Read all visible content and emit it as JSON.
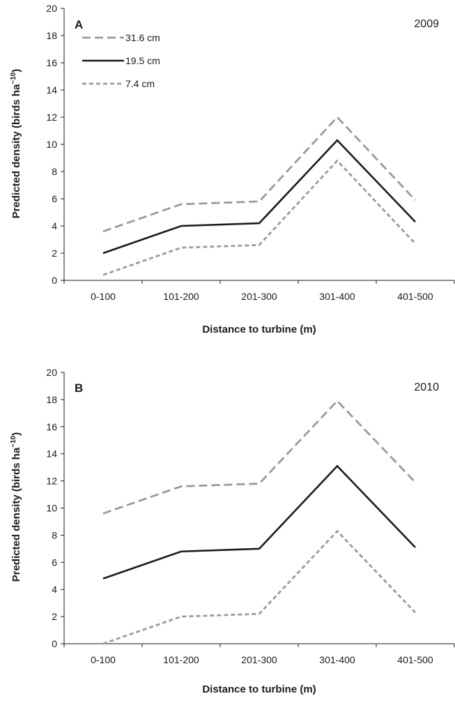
{
  "chart_data": [
    {
      "type": "line",
      "panel_label": "A",
      "year_label": "2009",
      "categories": [
        "0-100",
        "101-200",
        "201-300",
        "301-400",
        "401-500"
      ],
      "series": [
        {
          "name": "31.6 cm",
          "values": [
            3.6,
            5.6,
            5.8,
            12.0,
            5.9
          ],
          "color": "#9a9a9a",
          "dash": "long"
        },
        {
          "name": "19.5 cm",
          "values": [
            2.0,
            4.0,
            4.2,
            10.3,
            4.3
          ],
          "color": "#1a1a1a",
          "dash": "solid"
        },
        {
          "name": "7.4 cm",
          "values": [
            0.4,
            2.4,
            2.6,
            8.8,
            2.7
          ],
          "color": "#9a9a9a",
          "dash": "short"
        }
      ],
      "xlabel": "Distance to turbine (m)",
      "ylabel": "Predicted density (birds ha",
      "ylabel_sup": "−10",
      "ylabel_end": ")",
      "ylim": [
        0,
        20
      ],
      "yticks": [
        0,
        2,
        4,
        6,
        8,
        10,
        12,
        14,
        16,
        18,
        20
      ],
      "legend": "top-left",
      "grid": false
    },
    {
      "type": "line",
      "panel_label": "B",
      "year_label": "2010",
      "categories": [
        "0-100",
        "101-200",
        "201-300",
        "301-400",
        "401-500"
      ],
      "series": [
        {
          "name": "31.6 cm",
          "values": [
            9.6,
            11.6,
            11.8,
            17.9,
            11.9
          ],
          "color": "#9a9a9a",
          "dash": "long"
        },
        {
          "name": "19.5 cm",
          "values": [
            4.8,
            6.8,
            7.0,
            13.1,
            7.1
          ],
          "color": "#1a1a1a",
          "dash": "solid"
        },
        {
          "name": "7.4 cm",
          "values": [
            0.0,
            2.0,
            2.2,
            8.3,
            2.3
          ],
          "color": "#9a9a9a",
          "dash": "short"
        }
      ],
      "xlabel": "Distance to turbine (m)",
      "ylabel": "Predicted density (birds ha",
      "ylabel_sup": "−10",
      "ylabel_end": ")",
      "ylim": [
        0,
        20
      ],
      "yticks": [
        0,
        2,
        4,
        6,
        8,
        10,
        12,
        14,
        16,
        18,
        20
      ],
      "legend": "none",
      "grid": false
    }
  ]
}
